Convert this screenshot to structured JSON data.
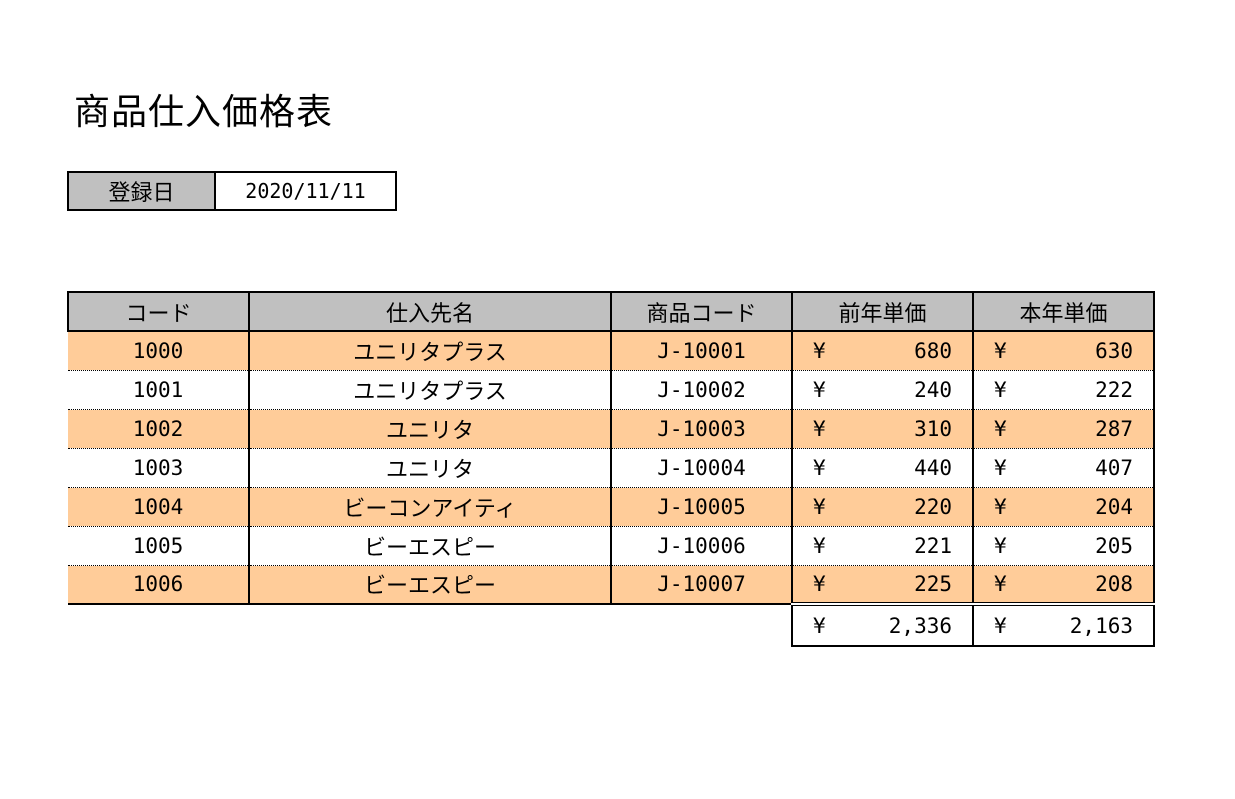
{
  "title": "商品仕入価格表",
  "registration": {
    "label": "登録日",
    "date": "2020/11/11"
  },
  "table": {
    "headers": [
      "コード",
      "仕入先名",
      "商品コード",
      "前年単価",
      "本年単価"
    ],
    "currency_symbol": "¥",
    "rows": [
      {
        "code": "1000",
        "supplier": "ユニリタプラス",
        "product_code": "J-10001",
        "prev_price": "680",
        "cur_price": "630"
      },
      {
        "code": "1001",
        "supplier": "ユニリタプラス",
        "product_code": "J-10002",
        "prev_price": "240",
        "cur_price": "222"
      },
      {
        "code": "1002",
        "supplier": "ユニリタ",
        "product_code": "J-10003",
        "prev_price": "310",
        "cur_price": "287"
      },
      {
        "code": "1003",
        "supplier": "ユニリタ",
        "product_code": "J-10004",
        "prev_price": "440",
        "cur_price": "407"
      },
      {
        "code": "1004",
        "supplier": "ビーコンアイティ",
        "product_code": "J-10005",
        "prev_price": "220",
        "cur_price": "204"
      },
      {
        "code": "1005",
        "supplier": "ビーエスピー",
        "product_code": "J-10006",
        "prev_price": "221",
        "cur_price": "205"
      },
      {
        "code": "1006",
        "supplier": "ビーエスピー",
        "product_code": "J-10007",
        "prev_price": "225",
        "cur_price": "208"
      }
    ],
    "totals": {
      "prev_price": "2,336",
      "cur_price": "2,163"
    }
  },
  "colors": {
    "header_fill": "#c0c0c0",
    "band_fill": "#ffcc99",
    "plain_fill": "#ffffff"
  }
}
